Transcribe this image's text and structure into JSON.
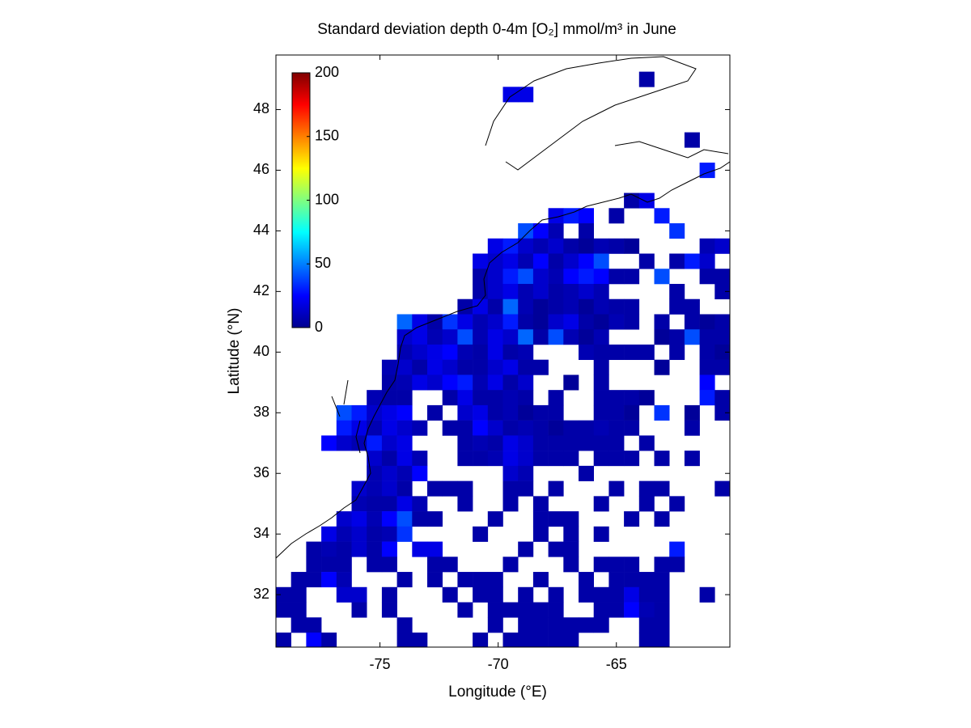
{
  "chart_data": {
    "type": "heatmap",
    "title": "Standard deviation depth 0-4m [O₂] mmol/m³ in June",
    "x_label": "Longitude (°E)",
    "y_label": "Latitude (°N)",
    "xlim": [
      -79.4,
      -60.2
    ],
    "ylim": [
      30.27,
      49.8
    ],
    "xticks": [
      -75,
      -70,
      -65
    ],
    "yticks": [
      32,
      34,
      36,
      38,
      40,
      42,
      44,
      46,
      48
    ],
    "colorbar": {
      "colormap": "jet",
      "lim": [
        0,
        200
      ],
      "ticks": [
        0,
        50,
        100,
        150,
        200
      ]
    },
    "x": [
      -79.08,
      -78.44,
      -77.8,
      -77.16,
      -76.52,
      -75.88,
      -75.24,
      -74.6,
      -73.96,
      -73.32,
      -72.68,
      -72.04,
      -71.4,
      -70.76,
      -70.12,
      -69.48,
      -68.84,
      -68.2,
      -67.56,
      -66.92,
      -66.28,
      -65.64,
      -65.0,
      -64.36,
      -63.72,
      -63.08,
      -62.44,
      -61.8,
      -61.16,
      -60.52
    ],
    "y": [
      49.0,
      48.5,
      48.0,
      47.5,
      47.0,
      46.5,
      46.0,
      45.5,
      45.0,
      44.5,
      44.0,
      43.5,
      43.0,
      42.5,
      42.0,
      41.5,
      41.0,
      40.5,
      40.0,
      39.5,
      39.0,
      38.5,
      38.0,
      37.5,
      37.0,
      36.5,
      36.0,
      35.5,
      35.0,
      34.5,
      34.0,
      33.5,
      33.0,
      32.5,
      32.0,
      31.5,
      31.0,
      30.5
    ],
    "z": [
      [
        null,
        null,
        null,
        null,
        null,
        null,
        null,
        null,
        null,
        null,
        null,
        null,
        null,
        null,
        null,
        null,
        null,
        null,
        null,
        null,
        null,
        null,
        null,
        null,
        8,
        null,
        null,
        null,
        null,
        null
      ],
      [
        null,
        null,
        null,
        null,
        null,
        null,
        null,
        null,
        null,
        null,
        null,
        null,
        null,
        null,
        null,
        20,
        20,
        null,
        null,
        null,
        null,
        null,
        null,
        null,
        null,
        null,
        null,
        null,
        null,
        null
      ],
      [
        null,
        null,
        null,
        null,
        null,
        null,
        null,
        null,
        null,
        null,
        null,
        null,
        null,
        null,
        null,
        null,
        null,
        null,
        null,
        null,
        null,
        null,
        null,
        null,
        null,
        null,
        null,
        null,
        null,
        null
      ],
      [
        null,
        null,
        null,
        null,
        null,
        null,
        null,
        null,
        null,
        null,
        null,
        null,
        null,
        null,
        null,
        null,
        null,
        null,
        null,
        null,
        null,
        null,
        null,
        null,
        null,
        null,
        null,
        null,
        null,
        null
      ],
      [
        null,
        null,
        null,
        null,
        null,
        null,
        null,
        null,
        null,
        null,
        null,
        null,
        null,
        null,
        null,
        null,
        null,
        null,
        null,
        null,
        null,
        null,
        null,
        null,
        null,
        null,
        null,
        8,
        null,
        null
      ],
      [
        null,
        null,
        null,
        null,
        null,
        null,
        null,
        null,
        null,
        null,
        null,
        null,
        null,
        null,
        null,
        null,
        null,
        null,
        null,
        null,
        null,
        null,
        null,
        null,
        null,
        null,
        null,
        null,
        null,
        null
      ],
      [
        null,
        null,
        null,
        null,
        null,
        null,
        null,
        null,
        null,
        null,
        null,
        null,
        null,
        null,
        null,
        null,
        null,
        null,
        null,
        null,
        null,
        null,
        null,
        null,
        null,
        null,
        null,
        null,
        30,
        null
      ],
      [
        null,
        null,
        null,
        null,
        null,
        null,
        null,
        null,
        null,
        null,
        null,
        null,
        null,
        null,
        null,
        null,
        null,
        null,
        null,
        null,
        null,
        null,
        null,
        null,
        null,
        null,
        null,
        null,
        null,
        null
      ],
      [
        null,
        null,
        null,
        null,
        null,
        null,
        null,
        null,
        null,
        null,
        null,
        null,
        null,
        null,
        null,
        null,
        null,
        null,
        null,
        null,
        null,
        null,
        null,
        8,
        20,
        null,
        null,
        null,
        null,
        null
      ],
      [
        null,
        null,
        null,
        null,
        null,
        null,
        null,
        null,
        null,
        null,
        null,
        null,
        null,
        null,
        null,
        null,
        null,
        null,
        20,
        30,
        25,
        null,
        8,
        null,
        null,
        30,
        null,
        null,
        null,
        null
      ],
      [
        null,
        null,
        null,
        null,
        null,
        null,
        null,
        null,
        null,
        null,
        null,
        null,
        null,
        null,
        null,
        null,
        40,
        25,
        10,
        null,
        8,
        null,
        null,
        null,
        null,
        null,
        35,
        null,
        null,
        null
      ],
      [
        null,
        null,
        null,
        null,
        null,
        null,
        null,
        null,
        null,
        null,
        null,
        null,
        null,
        null,
        20,
        30,
        15,
        10,
        15,
        8,
        5,
        10,
        8,
        5,
        null,
        null,
        null,
        null,
        10,
        15
      ],
      [
        null,
        null,
        null,
        null,
        null,
        null,
        null,
        null,
        null,
        null,
        null,
        null,
        null,
        20,
        15,
        20,
        10,
        25,
        8,
        15,
        25,
        40,
        null,
        null,
        8,
        null,
        8,
        30,
        15,
        null
      ],
      [
        null,
        null,
        null,
        null,
        null,
        null,
        null,
        null,
        null,
        null,
        null,
        null,
        null,
        8,
        15,
        30,
        40,
        15,
        10,
        25,
        30,
        25,
        8,
        8,
        null,
        40,
        null,
        null,
        8,
        8
      ],
      [
        null,
        null,
        null,
        null,
        null,
        null,
        null,
        null,
        null,
        null,
        null,
        null,
        null,
        8,
        15,
        20,
        10,
        15,
        8,
        10,
        15,
        10,
        null,
        null,
        null,
        null,
        8,
        null,
        null,
        8
      ],
      [
        null,
        null,
        null,
        null,
        null,
        null,
        null,
        null,
        null,
        null,
        null,
        null,
        8,
        20,
        8,
        45,
        10,
        5,
        8,
        10,
        5,
        10,
        8,
        8,
        null,
        null,
        8,
        8,
        null,
        null
      ],
      [
        null,
        null,
        null,
        null,
        null,
        null,
        null,
        null,
        45,
        20,
        8,
        35,
        20,
        10,
        15,
        30,
        8,
        5,
        15,
        20,
        8,
        5,
        10,
        8,
        null,
        8,
        null,
        8,
        5,
        8
      ],
      [
        null,
        null,
        null,
        null,
        null,
        null,
        null,
        null,
        15,
        20,
        10,
        15,
        40,
        10,
        20,
        15,
        45,
        8,
        40,
        10,
        5,
        10,
        null,
        null,
        null,
        5,
        8,
        40,
        8,
        8
      ],
      [
        null,
        null,
        null,
        null,
        null,
        null,
        null,
        null,
        10,
        15,
        20,
        25,
        10,
        8,
        20,
        8,
        10,
        null,
        null,
        null,
        10,
        8,
        8,
        8,
        8,
        null,
        8,
        null,
        8,
        5
      ],
      [
        null,
        null,
        null,
        null,
        null,
        null,
        null,
        10,
        15,
        8,
        20,
        15,
        8,
        8,
        15,
        20,
        8,
        8,
        null,
        null,
        null,
        8,
        null,
        null,
        null,
        5,
        null,
        null,
        8,
        8
      ],
      [
        null,
        null,
        null,
        null,
        null,
        null,
        null,
        8,
        10,
        20,
        15,
        25,
        30,
        10,
        20,
        8,
        15,
        null,
        null,
        5,
        null,
        8,
        null,
        null,
        null,
        null,
        null,
        null,
        25,
        null
      ],
      [
        null,
        null,
        null,
        null,
        null,
        null,
        10,
        8,
        8,
        null,
        null,
        8,
        20,
        8,
        8,
        10,
        8,
        null,
        8,
        null,
        null,
        8,
        8,
        8,
        5,
        null,
        null,
        null,
        30,
        8
      ],
      [
        null,
        null,
        null,
        null,
        40,
        30,
        15,
        20,
        25,
        null,
        8,
        null,
        15,
        20,
        8,
        10,
        5,
        8,
        8,
        null,
        null,
        8,
        8,
        5,
        null,
        35,
        null,
        5,
        null,
        8
      ],
      [
        null,
        null,
        null,
        null,
        30,
        20,
        10,
        20,
        15,
        10,
        null,
        8,
        8,
        25,
        15,
        8,
        10,
        8,
        5,
        8,
        8,
        10,
        8,
        8,
        null,
        null,
        null,
        8,
        null,
        null
      ],
      [
        null,
        null,
        null,
        25,
        15,
        10,
        30,
        15,
        20,
        null,
        null,
        null,
        8,
        10,
        8,
        20,
        15,
        8,
        8,
        8,
        8,
        8,
        8,
        null,
        8,
        null,
        null,
        null,
        null,
        null
      ],
      [
        null,
        null,
        null,
        null,
        null,
        null,
        15,
        8,
        20,
        10,
        null,
        null,
        8,
        8,
        10,
        20,
        15,
        8,
        8,
        8,
        null,
        8,
        8,
        8,
        null,
        8,
        null,
        8,
        null,
        null
      ],
      [
        null,
        null,
        null,
        null,
        null,
        null,
        10,
        15,
        10,
        25,
        null,
        null,
        null,
        null,
        null,
        15,
        10,
        null,
        null,
        null,
        8,
        null,
        null,
        null,
        null,
        null,
        null,
        null,
        null,
        null
      ],
      [
        null,
        null,
        null,
        null,
        null,
        15,
        10,
        15,
        8,
        null,
        8,
        8,
        8,
        null,
        null,
        8,
        8,
        null,
        8,
        null,
        null,
        null,
        8,
        null,
        8,
        8,
        null,
        null,
        null,
        8
      ],
      [
        null,
        null,
        null,
        null,
        null,
        10,
        8,
        8,
        20,
        10,
        null,
        null,
        8,
        null,
        null,
        8,
        null,
        8,
        null,
        null,
        null,
        8,
        null,
        null,
        8,
        null,
        8,
        null,
        null,
        null
      ],
      [
        null,
        null,
        null,
        null,
        15,
        20,
        10,
        25,
        40,
        8,
        8,
        null,
        null,
        null,
        8,
        null,
        null,
        8,
        8,
        8,
        null,
        null,
        null,
        8,
        null,
        8,
        null,
        null,
        null,
        null
      ],
      [
        null,
        null,
        null,
        20,
        10,
        15,
        8,
        10,
        35,
        null,
        null,
        null,
        null,
        8,
        null,
        null,
        null,
        8,
        null,
        8,
        null,
        8,
        null,
        null,
        null,
        null,
        null,
        null,
        null,
        null
      ],
      [
        null,
        null,
        8,
        10,
        8,
        15,
        8,
        25,
        null,
        20,
        20,
        null,
        null,
        null,
        null,
        null,
        8,
        null,
        8,
        8,
        null,
        null,
        null,
        null,
        null,
        null,
        30,
        null,
        null,
        null
      ],
      [
        null,
        null,
        8,
        8,
        8,
        null,
        8,
        8,
        null,
        null,
        8,
        8,
        null,
        null,
        null,
        8,
        null,
        null,
        null,
        8,
        null,
        8,
        8,
        8,
        null,
        8,
        8,
        null,
        null,
        null
      ],
      [
        null,
        8,
        8,
        25,
        10,
        null,
        null,
        null,
        8,
        null,
        8,
        null,
        8,
        8,
        8,
        null,
        null,
        8,
        null,
        null,
        8,
        null,
        8,
        8,
        8,
        8,
        null,
        null,
        null,
        null
      ],
      [
        8,
        8,
        null,
        null,
        15,
        15,
        null,
        8,
        null,
        null,
        null,
        8,
        null,
        8,
        8,
        null,
        8,
        null,
        8,
        null,
        8,
        8,
        8,
        20,
        8,
        8,
        null,
        null,
        8,
        null
      ],
      [
        8,
        8,
        null,
        null,
        null,
        8,
        null,
        8,
        null,
        null,
        null,
        null,
        8,
        null,
        8,
        8,
        8,
        8,
        8,
        null,
        null,
        8,
        8,
        25,
        10,
        8,
        null,
        null,
        null,
        null
      ],
      [
        null,
        8,
        8,
        null,
        null,
        null,
        null,
        null,
        8,
        null,
        null,
        null,
        null,
        null,
        8,
        null,
        8,
        8,
        8,
        8,
        8,
        8,
        null,
        null,
        8,
        8,
        null,
        null,
        null,
        null
      ],
      [
        8,
        null,
        25,
        8,
        null,
        null,
        null,
        null,
        8,
        8,
        null,
        null,
        null,
        8,
        null,
        8,
        8,
        8,
        8,
        8,
        null,
        null,
        null,
        null,
        8,
        8,
        null,
        null,
        null,
        null
      ]
    ]
  }
}
